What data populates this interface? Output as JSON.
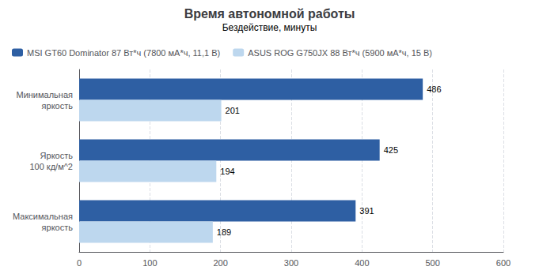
{
  "chart_data": {
    "type": "bar",
    "orientation": "horizontal",
    "title": "Время автономной работы",
    "subtitle": "Бездействие, минуты",
    "categories": [
      "Минимальная\nяркость",
      "Яркость\n100 кд/м^2",
      "Максимальная\nяркость"
    ],
    "series": [
      {
        "name": "MSI GT60 Dominator 87 Вт*ч (7800 мА*ч, 11,1 В)",
        "color": "#2E5FA3",
        "values": [
          486,
          425,
          391
        ]
      },
      {
        "name": "ASUS ROG G750JX 88 Вт*ч (5900 мА*ч, 15 В)",
        "color": "#BDD7EE",
        "values": [
          201,
          194,
          189
        ]
      }
    ],
    "xlim": [
      0,
      600
    ],
    "xticks": [
      0,
      100,
      200,
      300,
      400,
      500,
      600
    ],
    "grid": true,
    "legend": "upper left",
    "data_labels": true
  }
}
